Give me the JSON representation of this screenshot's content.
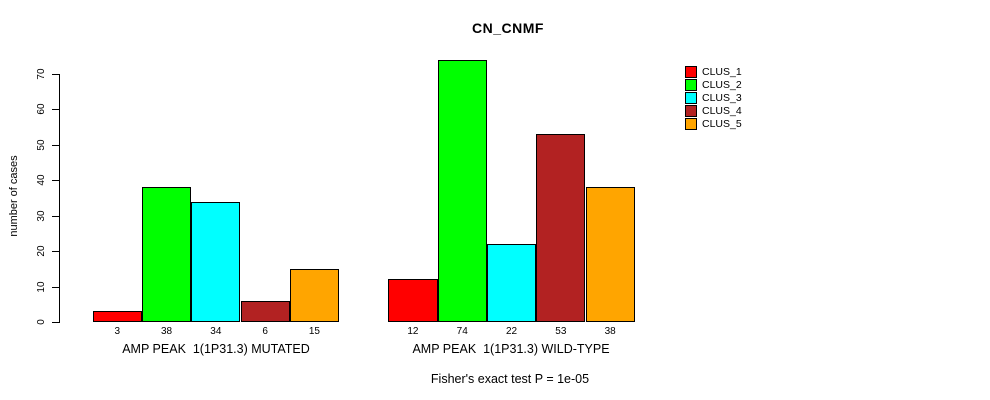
{
  "title": "CN_CNMF",
  "chart_data": {
    "type": "bar",
    "title": "CN_CNMF",
    "categories": [
      "AMP PEAK  1(1P31.3) MUTATED",
      "AMP PEAK  1(1P31.3) WILD-TYPE"
    ],
    "series": [
      {
        "name": "CLUS_1",
        "color": "#FF0000",
        "values": [
          3,
          12
        ]
      },
      {
        "name": "CLUS_2",
        "color": "#00FF00",
        "values": [
          38,
          74
        ]
      },
      {
        "name": "CLUS_3",
        "color": "#00FFFF",
        "values": [
          34,
          22
        ]
      },
      {
        "name": "CLUS_4",
        "color": "#B22222",
        "values": [
          6,
          53
        ]
      },
      {
        "name": "CLUS_5",
        "color": "#FFA500",
        "values": [
          15,
          38
        ]
      }
    ],
    "xlabel": "",
    "ylabel": "number of cases",
    "ylim": [
      0,
      70
    ],
    "yticks": [
      0,
      10,
      20,
      30,
      40,
      50,
      60,
      70
    ],
    "grid": "off",
    "legend_position": "right-inside",
    "bar_value_labels_shown": true,
    "subtitle": "Fisher's exact test P = 1e-05"
  }
}
